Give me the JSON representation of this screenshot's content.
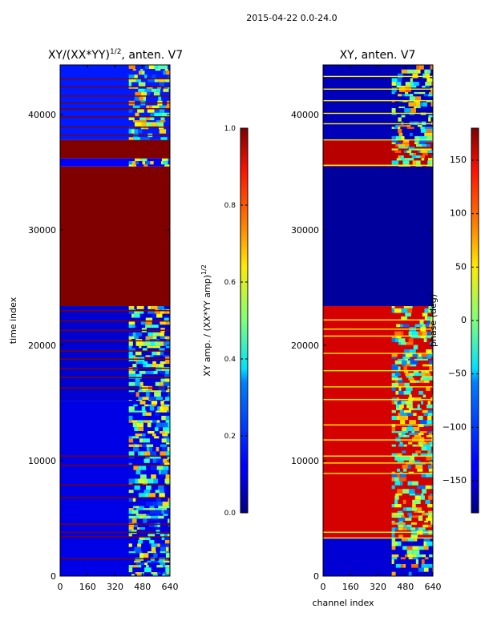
{
  "figure": {
    "suptitle": "2015-04-22 0.0-24.0"
  },
  "chart_data": [
    {
      "type": "heatmap",
      "title_prefix": "XY/(XX*YY)",
      "title_exponent": "1/2",
      "title_suffix": ", anten. V7",
      "xlabel": "",
      "ylabel": "time index",
      "xlim": [
        0,
        640
      ],
      "ylim": [
        0,
        44300
      ],
      "xticks": [
        0,
        160,
        320,
        480,
        640
      ],
      "yticks": [
        0,
        10000,
        20000,
        30000,
        40000
      ],
      "colorbar": {
        "label_prefix": "XY amp. / (XX*YY amp)",
        "label_exponent": "1/2",
        "range": [
          0.0,
          1.0
        ],
        "ticks": [
          "0.0",
          "0.2",
          "0.4",
          "0.6",
          "0.8",
          "1.0"
        ],
        "tick_values": [
          0.0,
          0.2,
          0.4,
          0.6,
          0.8,
          1.0
        ]
      },
      "regions": [
        {
          "ymin": 0,
          "ymax": 15200,
          "value": 0.1,
          "pattern": "noisy"
        },
        {
          "ymin": 15200,
          "ymax": 23400,
          "value": 0.08,
          "pattern": "noisy"
        },
        {
          "ymin": 23400,
          "ymax": 35500,
          "value": 1.0,
          "pattern": "solid"
        },
        {
          "ymin": 35500,
          "ymax": 36200,
          "value": 0.12,
          "pattern": "noisy"
        },
        {
          "ymin": 36200,
          "ymax": 37800,
          "value": 1.0,
          "pattern": "solid"
        },
        {
          "ymin": 37800,
          "ymax": 44300,
          "value": 0.15,
          "pattern": "noisy"
        }
      ],
      "band": {
        "xmin": 400,
        "xmax": 640,
        "value": 0.45
      },
      "lines_rows": [
        1500,
        3400,
        3800,
        4500,
        6800,
        7900,
        9600,
        10400,
        16300,
        17200,
        18000,
        18800,
        19500,
        20400,
        21300,
        22100,
        23000,
        38200,
        38900,
        39800,
        40500,
        41000,
        41600,
        42400,
        43100
      ]
    },
    {
      "type": "heatmap",
      "title": "XY, anten. V7",
      "xlabel": "channel index",
      "ylabel": "",
      "xlim": [
        0,
        640
      ],
      "ylim": [
        0,
        44300
      ],
      "xticks": [
        0,
        160,
        320,
        480,
        640
      ],
      "yticks": [
        0,
        10000,
        20000,
        30000,
        40000
      ],
      "colorbar": {
        "label": "phase (deg)",
        "range": [
          -180,
          180
        ],
        "ticks": [
          "150",
          "100",
          "50",
          "0",
          "−50",
          "−100",
          "−150"
        ],
        "tick_values": [
          150,
          100,
          50,
          0,
          -50,
          -100,
          -150
        ]
      },
      "regions": [
        {
          "ymin": 0,
          "ymax": 3300,
          "value": -150,
          "pattern": "noisy"
        },
        {
          "ymin": 3300,
          "ymax": 15200,
          "value": 150,
          "pattern": "noisy"
        },
        {
          "ymin": 15200,
          "ymax": 23400,
          "value": 150,
          "pattern": "noisy"
        },
        {
          "ymin": 23400,
          "ymax": 35500,
          "value": -170,
          "pattern": "solid"
        },
        {
          "ymin": 35500,
          "ymax": 37800,
          "value": 160,
          "pattern": "noisy"
        },
        {
          "ymin": 37800,
          "ymax": 44300,
          "value": -160,
          "pattern": "noisy"
        }
      ],
      "band": {
        "xmin": 400,
        "xmax": 640,
        "value": 0
      },
      "lines_rows": [
        3300,
        3800,
        8900,
        9800,
        10400,
        11800,
        13100,
        15300,
        16400,
        17800,
        19300,
        20800,
        21400,
        22200,
        35600,
        37800,
        39200,
        40100,
        41200,
        42200,
        43300
      ]
    }
  ]
}
